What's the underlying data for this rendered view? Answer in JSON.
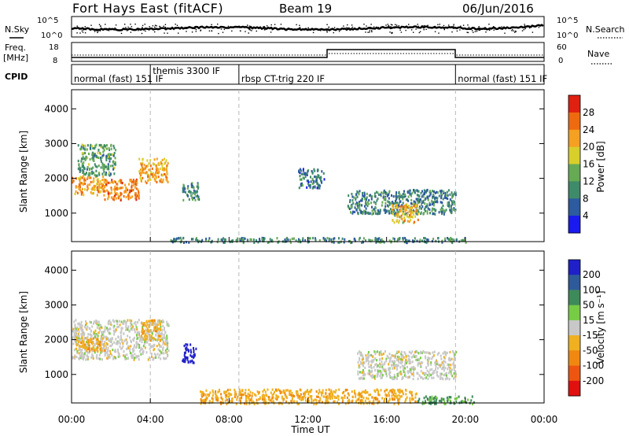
{
  "header": {
    "station": "Fort Hays East (fitACF)",
    "beam": "Beam 19",
    "date": "06/Jun/2016"
  },
  "strip_labels": {
    "nsky": "N.Sky",
    "nsearch": "N.Search",
    "freq": "Freq.",
    "freq_unit": "[MHz]",
    "nave": "Nave",
    "cpid": "CPID"
  },
  "noise_axis": {
    "left_top": "10^5",
    "left_bottom": "10^0",
    "right_top": "10^5",
    "right_bottom": "10^0"
  },
  "freq_axis": {
    "left_top": "18",
    "left_bottom": "8",
    "right_top": "60",
    "right_bottom": "0"
  },
  "cpid_segments": [
    {
      "label": "normal (fast) 151 IF",
      "start_hour": 0
    },
    {
      "label": "themis 3300 IF",
      "start_hour": 4.0
    },
    {
      "label": "rbsp CT-trig 220 IF",
      "start_hour": 8.5
    },
    {
      "label": "normal (fast) 151 IF",
      "start_hour": 19.5
    }
  ],
  "x_axis": {
    "title": "Time UT",
    "ticks": [
      "00:00",
      "04:00",
      "08:00",
      "12:00",
      "16:00",
      "20:00",
      "00:00"
    ],
    "range_hours": [
      0,
      24
    ]
  },
  "y_axis": {
    "title": "Slant Range [km]",
    "ticks": [
      "1000",
      "2000",
      "3000",
      "4000"
    ],
    "range_km": [
      180,
      4550
    ]
  },
  "colorbars": {
    "power": {
      "title": "Power [dB]",
      "labels": [
        "4",
        "8",
        "12",
        "16",
        "20",
        "24",
        "28"
      ],
      "colors": [
        "#1a1aee",
        "#2d5aa0",
        "#3f8a6a",
        "#66aa55",
        "#d8cf2a",
        "#f5a020",
        "#ee6a10",
        "#e02010"
      ]
    },
    "velocity": {
      "title": "Velocity [m s⁻¹]",
      "labels": [
        "200",
        "100",
        "50",
        "15",
        "-15",
        "-50",
        "-100",
        "-200"
      ],
      "colors": [
        "#2020c8",
        "#2f5a9a",
        "#3f8a5a",
        "#77cc44",
        "#c8c8c8",
        "#f0b020",
        "#f08810",
        "#ee5510",
        "#e01010"
      ]
    }
  },
  "chart_data": [
    {
      "type": "heatmap",
      "title": "Power",
      "xlabel": "Time UT",
      "ylabel": "Slant Range [km]",
      "colorbar_label": "Power [dB]",
      "xlim_hours": [
        0,
        24
      ],
      "ylim_km": [
        180,
        4550
      ],
      "regions": [
        {
          "t0": 0.0,
          "t1": 1.6,
          "r0": 1550,
          "r1": 2100,
          "value_db": 22
        },
        {
          "t0": 1.6,
          "t1": 3.4,
          "r0": 1400,
          "r1": 2000,
          "value_db": 24
        },
        {
          "t0": 3.4,
          "t1": 4.9,
          "r0": 1900,
          "r1": 2600,
          "value_db": 22
        },
        {
          "t0": 0.3,
          "t1": 2.2,
          "r0": 2100,
          "r1": 3000,
          "value_db": 12
        },
        {
          "t0": 5.6,
          "t1": 6.5,
          "r0": 1400,
          "r1": 1900,
          "value_db": 10
        },
        {
          "t0": 11.5,
          "t1": 12.8,
          "r0": 1750,
          "r1": 2300,
          "value_db": 8
        },
        {
          "t0": 14.0,
          "t1": 19.5,
          "r0": 1000,
          "r1": 1700,
          "value_db": 9
        },
        {
          "t0": 16.2,
          "t1": 17.6,
          "r0": 750,
          "r1": 1300,
          "value_db": 20
        },
        {
          "t0": 5.0,
          "t1": 20.0,
          "r0": 180,
          "r1": 320,
          "value_db": 10
        }
      ]
    },
    {
      "type": "heatmap",
      "title": "Velocity",
      "xlabel": "Time UT",
      "ylabel": "Slant Range [km]",
      "colorbar_label": "Velocity [m s⁻¹]",
      "xlim_hours": [
        0,
        24
      ],
      "ylim_km": [
        180,
        4550
      ],
      "regions": [
        {
          "t0": 0.0,
          "t1": 4.9,
          "r0": 1450,
          "r1": 2600,
          "value_ms": 0
        },
        {
          "t0": 0.2,
          "t1": 1.8,
          "r0": 1700,
          "r1": 2100,
          "value_ms": -40
        },
        {
          "t0": 3.5,
          "t1": 4.5,
          "r0": 2000,
          "r1": 2600,
          "value_ms": -40
        },
        {
          "t0": 5.6,
          "t1": 6.3,
          "r0": 1350,
          "r1": 1900,
          "value_ms": 220
        },
        {
          "t0": 14.5,
          "t1": 19.5,
          "r0": 900,
          "r1": 1700,
          "value_ms": 0
        },
        {
          "t0": 6.5,
          "t1": 17.5,
          "r0": 180,
          "r1": 600,
          "value_ms": -40
        },
        {
          "t0": 17.5,
          "t1": 20.5,
          "r0": 180,
          "r1": 400,
          "value_ms": 60
        }
      ]
    }
  ]
}
